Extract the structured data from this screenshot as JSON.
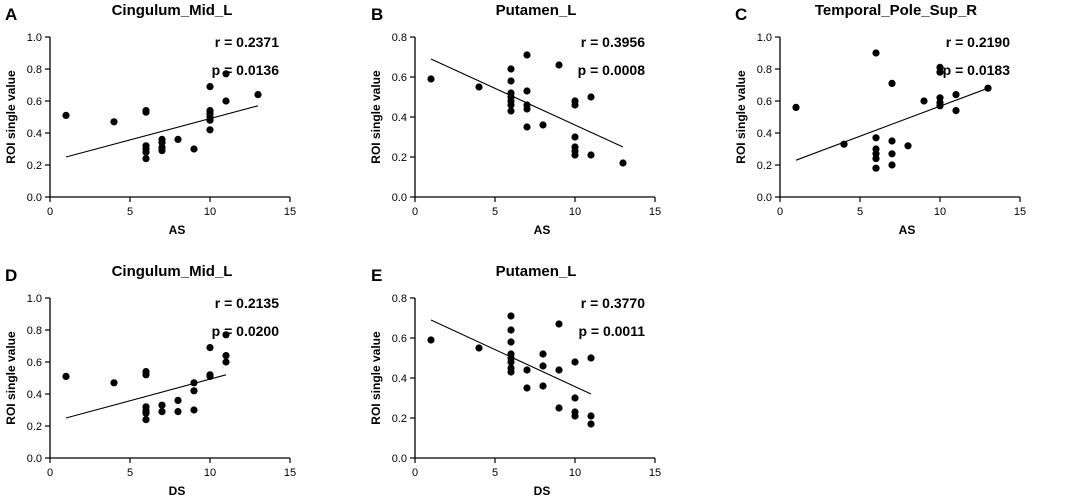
{
  "chart_data": [
    {
      "type": "scatter",
      "panel_label": "A",
      "title": "Cingulum_Mid_L",
      "xlabel": "AS",
      "ylabel": "ROI single value",
      "xlim": [
        0,
        15
      ],
      "ylim": [
        0.0,
        1.0
      ],
      "xticks": [
        "0",
        "5",
        "10",
        "15"
      ],
      "yticks": [
        "0.0",
        "0.2",
        "0.4",
        "0.6",
        "0.8",
        "1.0"
      ],
      "r_text": "r = 0.2371",
      "p_text": "p = 0.0136",
      "fit_line": {
        "x": [
          1,
          13
        ],
        "y": [
          0.25,
          0.57
        ]
      },
      "points": [
        [
          1,
          0.51
        ],
        [
          4,
          0.47
        ],
        [
          6,
          0.54
        ],
        [
          6,
          0.53
        ],
        [
          6,
          0.32
        ],
        [
          6,
          0.3
        ],
        [
          6,
          0.28
        ],
        [
          6,
          0.24
        ],
        [
          7,
          0.36
        ],
        [
          7,
          0.34
        ],
        [
          7,
          0.31
        ],
        [
          7,
          0.29
        ],
        [
          8,
          0.36
        ],
        [
          9,
          0.3
        ],
        [
          10,
          0.69
        ],
        [
          10,
          0.54
        ],
        [
          10,
          0.52
        ],
        [
          10,
          0.5
        ],
        [
          10,
          0.48
        ],
        [
          10,
          0.42
        ],
        [
          11,
          0.77
        ],
        [
          11,
          0.6
        ],
        [
          13,
          0.64
        ]
      ]
    },
    {
      "type": "scatter",
      "panel_label": "B",
      "title": "Putamen_L",
      "xlabel": "AS",
      "ylabel": "ROI single value",
      "xlim": [
        0,
        15
      ],
      "ylim": [
        0.0,
        0.8
      ],
      "xticks": [
        "0",
        "5",
        "10",
        "15"
      ],
      "yticks": [
        "0.0",
        "0.2",
        "0.4",
        "0.6",
        "0.8"
      ],
      "r_text": "r = 0.3956",
      "p_text": "p = 0.0008",
      "fit_line": {
        "x": [
          1,
          13
        ],
        "y": [
          0.69,
          0.25
        ]
      },
      "points": [
        [
          1,
          0.59
        ],
        [
          4,
          0.55
        ],
        [
          6,
          0.64
        ],
        [
          6,
          0.58
        ],
        [
          6,
          0.52
        ],
        [
          6,
          0.5
        ],
        [
          6,
          0.48
        ],
        [
          6,
          0.46
        ],
        [
          6,
          0.43
        ],
        [
          7,
          0.71
        ],
        [
          7,
          0.53
        ],
        [
          7,
          0.46
        ],
        [
          7,
          0.44
        ],
        [
          7,
          0.35
        ],
        [
          8,
          0.36
        ],
        [
          9,
          0.66
        ],
        [
          10,
          0.48
        ],
        [
          10,
          0.46
        ],
        [
          10,
          0.3
        ],
        [
          10,
          0.25
        ],
        [
          10,
          0.23
        ],
        [
          10,
          0.21
        ],
        [
          11,
          0.5
        ],
        [
          11,
          0.21
        ],
        [
          13,
          0.17
        ]
      ]
    },
    {
      "type": "scatter",
      "panel_label": "C",
      "title": "Temporal_Pole_Sup_R",
      "xlabel": "AS",
      "ylabel": "ROI single value",
      "xlim": [
        0,
        15
      ],
      "ylim": [
        0.0,
        1.0
      ],
      "xticks": [
        "0",
        "5",
        "10",
        "15"
      ],
      "yticks": [
        "0.0",
        "0.2",
        "0.4",
        "0.6",
        "0.8",
        "1.0"
      ],
      "r_text": "r = 0.2190",
      "p_text": "p = 0.0183",
      "fit_line": {
        "x": [
          1,
          13
        ],
        "y": [
          0.23,
          0.68
        ]
      },
      "points": [
        [
          1,
          0.56
        ],
        [
          4,
          0.33
        ],
        [
          6,
          0.9
        ],
        [
          6,
          0.37
        ],
        [
          6,
          0.3
        ],
        [
          6,
          0.27
        ],
        [
          6,
          0.24
        ],
        [
          6,
          0.18
        ],
        [
          7,
          0.71
        ],
        [
          7,
          0.35
        ],
        [
          7,
          0.27
        ],
        [
          7,
          0.2
        ],
        [
          8,
          0.32
        ],
        [
          9,
          0.6
        ],
        [
          10,
          0.81
        ],
        [
          10,
          0.78
        ],
        [
          10,
          0.62
        ],
        [
          10,
          0.59
        ],
        [
          10,
          0.57
        ],
        [
          11,
          0.64
        ],
        [
          11,
          0.54
        ],
        [
          13,
          0.68
        ]
      ]
    },
    {
      "type": "scatter",
      "panel_label": "D",
      "title": "Cingulum_Mid_L",
      "xlabel": "DS",
      "ylabel": "ROI single value",
      "xlim": [
        0,
        15
      ],
      "ylim": [
        0.0,
        1.0
      ],
      "xticks": [
        "0",
        "5",
        "10",
        "15"
      ],
      "yticks": [
        "0.0",
        "0.2",
        "0.4",
        "0.6",
        "0.8",
        "1.0"
      ],
      "r_text": "r = 0.2135",
      "p_text": "p = 0.0200",
      "fit_line": {
        "x": [
          1,
          11
        ],
        "y": [
          0.25,
          0.52
        ]
      },
      "points": [
        [
          1,
          0.51
        ],
        [
          4,
          0.47
        ],
        [
          6,
          0.54
        ],
        [
          6,
          0.52
        ],
        [
          6,
          0.32
        ],
        [
          6,
          0.3
        ],
        [
          6,
          0.28
        ],
        [
          6,
          0.24
        ],
        [
          7,
          0.33
        ],
        [
          7,
          0.29
        ],
        [
          8,
          0.36
        ],
        [
          8,
          0.29
        ],
        [
          9,
          0.47
        ],
        [
          9,
          0.42
        ],
        [
          9,
          0.3
        ],
        [
          10,
          0.69
        ],
        [
          10,
          0.52
        ],
        [
          10,
          0.51
        ],
        [
          11,
          0.77
        ],
        [
          11,
          0.64
        ],
        [
          11,
          0.6
        ]
      ]
    },
    {
      "type": "scatter",
      "panel_label": "E",
      "title": "Putamen_L",
      "xlabel": "DS",
      "ylabel": "ROI single value",
      "xlim": [
        0,
        15
      ],
      "ylim": [
        0.0,
        0.8
      ],
      "xticks": [
        "0",
        "5",
        "10",
        "15"
      ],
      "yticks": [
        "0.0",
        "0.2",
        "0.4",
        "0.6",
        "0.8"
      ],
      "r_text": "r = 0.3770",
      "p_text": "p = 0.0011",
      "fit_line": {
        "x": [
          1,
          11
        ],
        "y": [
          0.69,
          0.32
        ]
      },
      "points": [
        [
          1,
          0.59
        ],
        [
          4,
          0.55
        ],
        [
          6,
          0.71
        ],
        [
          6,
          0.64
        ],
        [
          6,
          0.58
        ],
        [
          6,
          0.52
        ],
        [
          6,
          0.5
        ],
        [
          6,
          0.48
        ],
        [
          6,
          0.45
        ],
        [
          6,
          0.43
        ],
        [
          7,
          0.44
        ],
        [
          7,
          0.35
        ],
        [
          8,
          0.52
        ],
        [
          8,
          0.46
        ],
        [
          8,
          0.36
        ],
        [
          9,
          0.67
        ],
        [
          9,
          0.44
        ],
        [
          9,
          0.25
        ],
        [
          10,
          0.48
        ],
        [
          10,
          0.3
        ],
        [
          10,
          0.23
        ],
        [
          10,
          0.21
        ],
        [
          11,
          0.5
        ],
        [
          11,
          0.21
        ],
        [
          11,
          0.17
        ]
      ]
    }
  ]
}
